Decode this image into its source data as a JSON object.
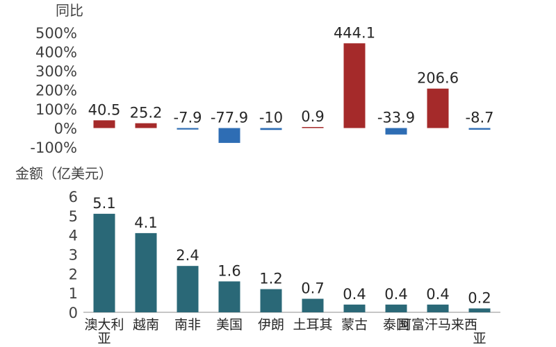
{
  "colors": {
    "positive": "#A52A2A",
    "negative": "#2E6DB4",
    "amount": "#2A6877",
    "axis": "#8C8C8C",
    "text": "#262626"
  },
  "chart_data": [
    {
      "type": "bar",
      "title": "",
      "ylabel": "同比",
      "xlabel": "",
      "ylim": [
        -100,
        500
      ],
      "yticks": [
        "500%",
        "400%",
        "300%",
        "200%",
        "100%",
        "0%",
        "-100%"
      ],
      "ytick_values": [
        500,
        400,
        300,
        200,
        100,
        0,
        -100
      ],
      "categories": [
        "澳大利亚",
        "越南",
        "南非",
        "美国",
        "伊朗",
        "土耳其",
        "蒙古",
        "泰国",
        "阿富汗",
        "马来西亚"
      ],
      "values": [
        40.5,
        25.2,
        -7.9,
        -77.9,
        -10,
        0.9,
        444.1,
        -33.9,
        206.6,
        -8.7
      ],
      "data_labels": [
        "40.5",
        "25.2",
        "-7.9",
        "-77.9",
        "-10",
        "0.9",
        "444.1",
        "-33.9",
        "206.6",
        "-8.7"
      ],
      "grid": false
    },
    {
      "type": "bar",
      "title": "",
      "ylabel": "金额（亿美元）",
      "xlabel": "",
      "ylim": [
        0,
        6
      ],
      "yticks": [
        "6",
        "5",
        "4",
        "3",
        "2",
        "1",
        "0"
      ],
      "ytick_values": [
        6,
        5,
        4,
        3,
        2,
        1,
        0
      ],
      "categories": [
        "澳大利亚",
        "越南",
        "南非",
        "美国",
        "伊朗",
        "土耳其",
        "蒙古",
        "泰国",
        "阿富汗",
        "马来西亚"
      ],
      "category_lines": [
        [
          "澳大利",
          "亚"
        ],
        [
          "越南"
        ],
        [
          "南非"
        ],
        [
          "美国"
        ],
        [
          "伊朗"
        ],
        [
          "土耳其"
        ],
        [
          "蒙古"
        ],
        [
          "泰国"
        ],
        [
          "阿富汗马来西"
        ],
        [
          "",
          "亚"
        ]
      ],
      "values": [
        5.1,
        4.1,
        2.4,
        1.6,
        1.2,
        0.7,
        0.4,
        0.4,
        0.4,
        0.2
      ],
      "data_labels": [
        "5.1",
        "4.1",
        "2.4",
        "1.6",
        "1.2",
        "0.7",
        "0.4",
        "0.4",
        "0.4",
        "0.2"
      ],
      "grid": false
    }
  ]
}
